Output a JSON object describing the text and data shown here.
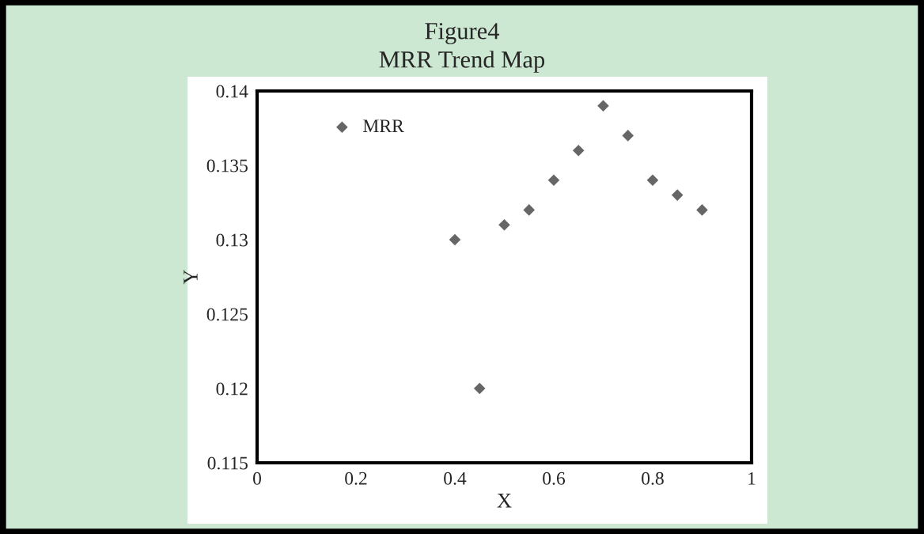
{
  "chart_data": {
    "type": "scatter",
    "title": "Figure4",
    "subtitle": "MRR Trend Map",
    "xlabel": "X",
    "ylabel": "Y",
    "x": [
      0.4,
      0.45,
      0.5,
      0.55,
      0.6,
      0.65,
      0.7,
      0.75,
      0.8,
      0.85,
      0.9
    ],
    "series": [
      {
        "name": "MRR",
        "color": "#666666",
        "values": [
          0.13,
          0.12,
          0.131,
          0.132,
          0.134,
          0.136,
          0.139,
          0.137,
          0.134,
          0.133,
          0.132
        ]
      }
    ],
    "xlim": [
      0,
      1
    ],
    "xticks": [
      0,
      0.2,
      0.4,
      0.6,
      0.8,
      1
    ],
    "ylim": [
      0.115,
      0.14
    ],
    "yticks": [
      0.115,
      0.12,
      0.125,
      0.13,
      0.135,
      0.14
    ],
    "marker": "diamond",
    "legend": "top left",
    "grid": false
  }
}
